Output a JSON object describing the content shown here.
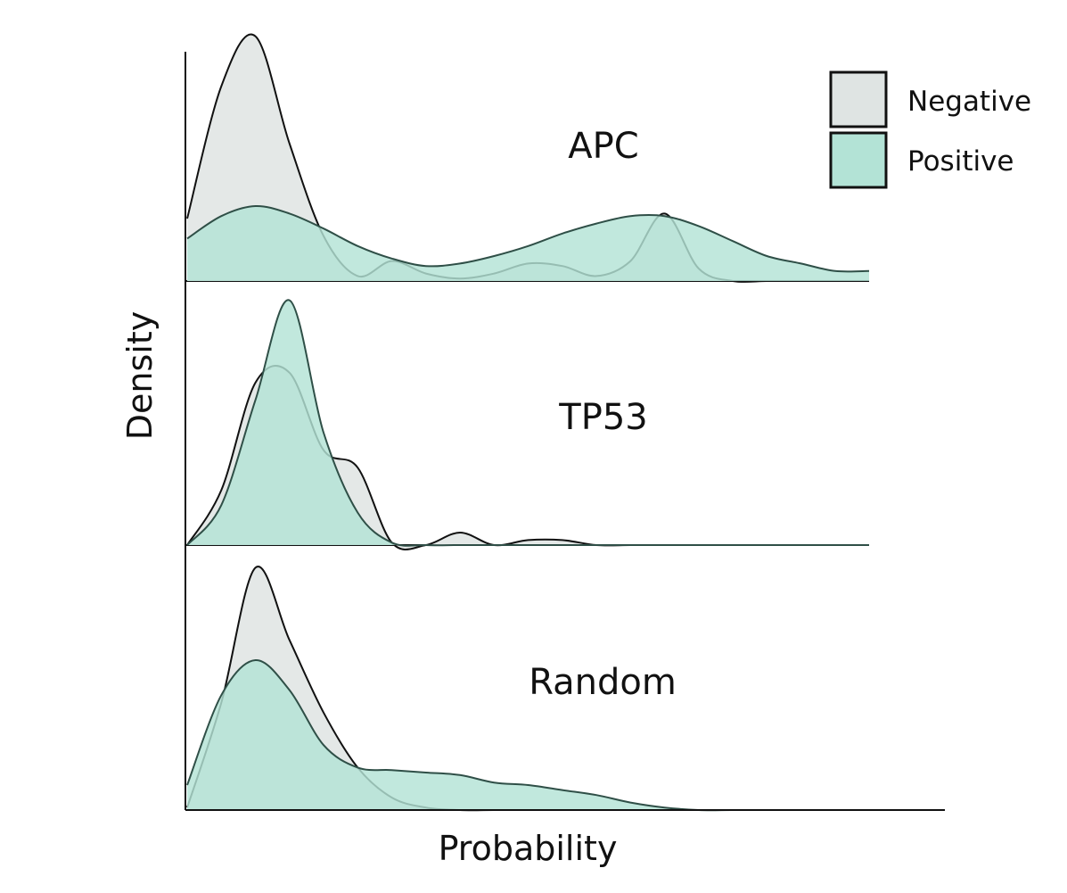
{
  "chart_data": {
    "type": "area",
    "subtype": "ridgeline-density",
    "xlabel": "Probability",
    "ylabel": "Density",
    "x_ticks_shown": false,
    "y_ticks_shown": false,
    "grid": false,
    "legend_position": "top-right",
    "legend": [
      {
        "name": "Negative",
        "color": "#dfe4e3"
      },
      {
        "name": "Positive",
        "color": "#b3e3d6"
      }
    ],
    "x": [
      0,
      0.05,
      0.1,
      0.15,
      0.2,
      0.25,
      0.3,
      0.35,
      0.4,
      0.45,
      0.5,
      0.55,
      0.6,
      0.65,
      0.7,
      0.75,
      0.8,
      0.85,
      0.9,
      0.95,
      1.0
    ],
    "panels": [
      {
        "name": "APC",
        "series": [
          {
            "name": "Negative",
            "values": [
              0.25,
              0.78,
              0.98,
              0.55,
              0.18,
              0.02,
              0.08,
              0.03,
              0.01,
              0.03,
              0.07,
              0.06,
              0.02,
              0.08,
              0.27,
              0.05,
              0.0,
              0.0,
              0.0,
              0.0,
              0.0
            ]
          },
          {
            "name": "Positive",
            "values": [
              0.17,
              0.26,
              0.3,
              0.27,
              0.21,
              0.14,
              0.09,
              0.06,
              0.07,
              0.1,
              0.14,
              0.19,
              0.23,
              0.26,
              0.26,
              0.22,
              0.16,
              0.1,
              0.07,
              0.04,
              0.04
            ]
          }
        ]
      },
      {
        "name": "TP53",
        "series": [
          {
            "name": "Negative",
            "values": [
              0.0,
              0.22,
              0.65,
              0.69,
              0.38,
              0.31,
              0.01,
              0.0,
              0.05,
              0.0,
              0.02,
              0.02,
              0.0,
              0.0,
              0.0,
              0.0,
              0.0,
              0.0,
              0.0,
              0.0,
              0.0
            ]
          },
          {
            "name": "Positive",
            "values": [
              0.0,
              0.16,
              0.58,
              0.98,
              0.45,
              0.13,
              0.01,
              0.0,
              0.0,
              0.0,
              0.0,
              0.0,
              0.0,
              0.0,
              0.0,
              0.0,
              0.0,
              0.0,
              0.0,
              0.0,
              0.0
            ]
          }
        ]
      },
      {
        "name": "Random",
        "series": [
          {
            "name": "Negative",
            "values": [
              0.01,
              0.43,
              0.97,
              0.68,
              0.39,
              0.17,
              0.05,
              0.01,
              0.0,
              0.0,
              0.0,
              0.0,
              0.0,
              0.0,
              0.0,
              0.0,
              0.0,
              0.0,
              0.0,
              0.0,
              0.0
            ]
          },
          {
            "name": "Positive",
            "values": [
              0.1,
              0.46,
              0.6,
              0.48,
              0.26,
              0.17,
              0.16,
              0.15,
              0.14,
              0.11,
              0.1,
              0.08,
              0.06,
              0.03,
              0.01,
              0.0,
              0.0,
              0.0,
              0.0,
              0.0,
              0.0
            ]
          }
        ]
      }
    ]
  }
}
